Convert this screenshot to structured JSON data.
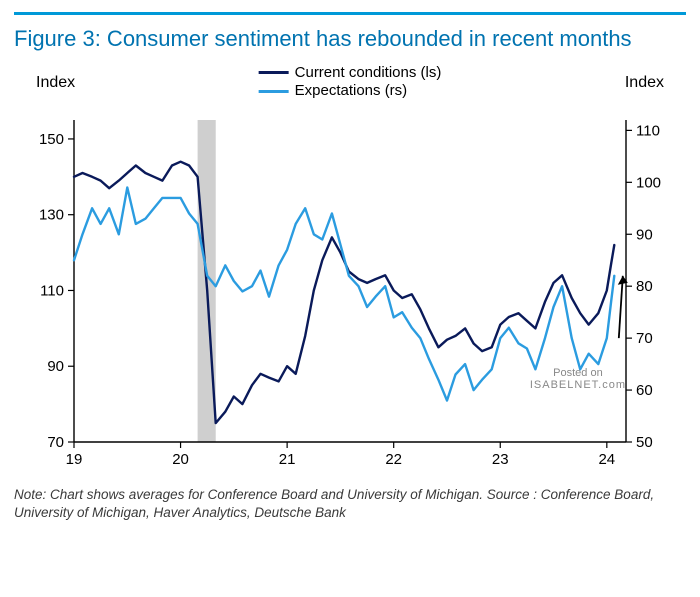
{
  "title": "Figure 3: Consumer sentiment has rebounded in recent months",
  "note": "Note: Chart shows averages for Conference Board and University of Michigan. Source : Conference Board, University of Michigan, Haver Analytics, Deutsche Bank",
  "watermark_line1": "Posted on",
  "watermark_line2": "ISABELNET.com",
  "chart": {
    "type": "line-dual-axis",
    "left_axis_title": "Index",
    "right_axis_title": "Index",
    "title_color": "#0073b0",
    "accent_color": "#0099d8",
    "background_color": "#ffffff",
    "axis_line_color": "#000000",
    "recession_band_color": "#cfcfcf",
    "recession_band_x": [
      20.16,
      20.33
    ],
    "x_ticks": [
      19,
      20,
      21,
      22,
      23,
      24
    ],
    "left_y": {
      "min": 70,
      "max": 155,
      "ticks": [
        70,
        90,
        110,
        130,
        150
      ]
    },
    "right_y": {
      "min": 50,
      "max": 112,
      "ticks": [
        50,
        60,
        70,
        80,
        90,
        100,
        110
      ]
    },
    "legend": [
      {
        "label": "Current conditions (ls)",
        "color": "#0a1a5a"
      },
      {
        "label": "Expectations (rs)",
        "color": "#2b9ce0"
      }
    ],
    "series": [
      {
        "name": "current_conditions",
        "axis": "left",
        "color": "#0a1a5a",
        "line_width": 2.4,
        "data": [
          [
            19.0,
            140
          ],
          [
            19.08,
            141
          ],
          [
            19.17,
            140
          ],
          [
            19.25,
            139
          ],
          [
            19.33,
            137
          ],
          [
            19.42,
            139
          ],
          [
            19.5,
            141
          ],
          [
            19.58,
            143
          ],
          [
            19.67,
            141
          ],
          [
            19.75,
            140
          ],
          [
            19.83,
            139
          ],
          [
            19.92,
            143
          ],
          [
            20.0,
            144
          ],
          [
            20.08,
            143
          ],
          [
            20.16,
            140
          ],
          [
            20.25,
            110
          ],
          [
            20.33,
            75
          ],
          [
            20.42,
            78
          ],
          [
            20.5,
            82
          ],
          [
            20.58,
            80
          ],
          [
            20.67,
            85
          ],
          [
            20.75,
            88
          ],
          [
            20.83,
            87
          ],
          [
            20.92,
            86
          ],
          [
            21.0,
            90
          ],
          [
            21.08,
            88
          ],
          [
            21.17,
            98
          ],
          [
            21.25,
            110
          ],
          [
            21.33,
            118
          ],
          [
            21.42,
            124
          ],
          [
            21.5,
            120
          ],
          [
            21.58,
            115
          ],
          [
            21.67,
            113
          ],
          [
            21.75,
            112
          ],
          [
            21.83,
            113
          ],
          [
            21.92,
            114
          ],
          [
            22.0,
            110
          ],
          [
            22.08,
            108
          ],
          [
            22.17,
            109
          ],
          [
            22.25,
            105
          ],
          [
            22.33,
            100
          ],
          [
            22.42,
            95
          ],
          [
            22.5,
            97
          ],
          [
            22.58,
            98
          ],
          [
            22.67,
            100
          ],
          [
            22.75,
            96
          ],
          [
            22.83,
            94
          ],
          [
            22.92,
            95
          ],
          [
            23.0,
            101
          ],
          [
            23.08,
            103
          ],
          [
            23.17,
            104
          ],
          [
            23.25,
            102
          ],
          [
            23.33,
            100
          ],
          [
            23.42,
            107
          ],
          [
            23.5,
            112
          ],
          [
            23.58,
            114
          ],
          [
            23.67,
            108
          ],
          [
            23.75,
            104
          ],
          [
            23.83,
            101
          ],
          [
            23.92,
            104
          ],
          [
            24.0,
            110
          ],
          [
            24.04,
            117
          ],
          [
            24.07,
            122
          ]
        ]
      },
      {
        "name": "expectations",
        "axis": "right",
        "color": "#2b9ce0",
        "line_width": 2.4,
        "data": [
          [
            19.0,
            85
          ],
          [
            19.08,
            90
          ],
          [
            19.17,
            95
          ],
          [
            19.25,
            92
          ],
          [
            19.33,
            95
          ],
          [
            19.42,
            90
          ],
          [
            19.5,
            99
          ],
          [
            19.58,
            92
          ],
          [
            19.67,
            93
          ],
          [
            19.75,
            95
          ],
          [
            19.83,
            97
          ],
          [
            19.92,
            97
          ],
          [
            20.0,
            97
          ],
          [
            20.08,
            94
          ],
          [
            20.16,
            92
          ],
          [
            20.25,
            82
          ],
          [
            20.33,
            80
          ],
          [
            20.42,
            84
          ],
          [
            20.5,
            81
          ],
          [
            20.58,
            79
          ],
          [
            20.67,
            80
          ],
          [
            20.75,
            83
          ],
          [
            20.83,
            78
          ],
          [
            20.92,
            84
          ],
          [
            21.0,
            87
          ],
          [
            21.08,
            92
          ],
          [
            21.17,
            95
          ],
          [
            21.25,
            90
          ],
          [
            21.33,
            89
          ],
          [
            21.42,
            94
          ],
          [
            21.5,
            88
          ],
          [
            21.58,
            82
          ],
          [
            21.67,
            80
          ],
          [
            21.75,
            76
          ],
          [
            21.83,
            78
          ],
          [
            21.92,
            80
          ],
          [
            22.0,
            74
          ],
          [
            22.08,
            75
          ],
          [
            22.17,
            72
          ],
          [
            22.25,
            70
          ],
          [
            22.33,
            66
          ],
          [
            22.42,
            62
          ],
          [
            22.5,
            58
          ],
          [
            22.58,
            63
          ],
          [
            22.67,
            65
          ],
          [
            22.75,
            60
          ],
          [
            22.83,
            62
          ],
          [
            22.92,
            64
          ],
          [
            23.0,
            70
          ],
          [
            23.08,
            72
          ],
          [
            23.17,
            69
          ],
          [
            23.25,
            68
          ],
          [
            23.33,
            64
          ],
          [
            23.42,
            70
          ],
          [
            23.5,
            76
          ],
          [
            23.58,
            80
          ],
          [
            23.67,
            70
          ],
          [
            23.75,
            64
          ],
          [
            23.83,
            67
          ],
          [
            23.92,
            65
          ],
          [
            24.0,
            70
          ],
          [
            24.04,
            77
          ],
          [
            24.07,
            82
          ]
        ]
      }
    ],
    "arrow": {
      "x": 24.15,
      "y_from": 70,
      "y_to": 82,
      "axis": "right",
      "color": "#000000"
    }
  }
}
